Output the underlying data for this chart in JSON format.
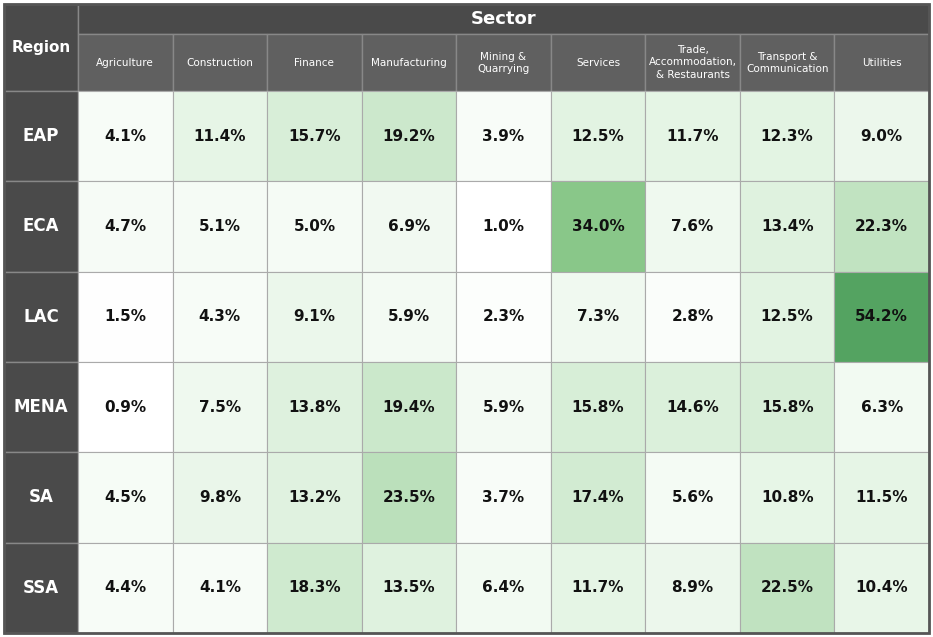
{
  "regions": [
    "EAP",
    "ECA",
    "LAC",
    "MENA",
    "SA",
    "SSA"
  ],
  "sectors": [
    "Agriculture",
    "Construction",
    "Finance",
    "Manufacturing",
    "Mining &\nQuarrying",
    "Services",
    "Trade,\nAccommodation,\n& Restaurants",
    "Transport &\nCommunication",
    "Utilities"
  ],
  "values": [
    [
      4.1,
      11.4,
      15.7,
      19.2,
      3.9,
      12.5,
      11.7,
      12.3,
      9.0
    ],
    [
      4.7,
      5.1,
      5.0,
      6.9,
      1.0,
      34.0,
      7.6,
      13.4,
      22.3
    ],
    [
      1.5,
      4.3,
      9.1,
      5.9,
      2.3,
      7.3,
      2.8,
      12.5,
      54.2
    ],
    [
      0.9,
      7.5,
      13.8,
      19.4,
      5.9,
      15.8,
      14.6,
      15.8,
      6.3
    ],
    [
      4.5,
      9.8,
      13.2,
      23.5,
      3.7,
      17.4,
      5.6,
      10.8,
      11.5
    ],
    [
      4.4,
      4.1,
      18.3,
      13.5,
      6.4,
      11.7,
      8.9,
      22.5,
      10.4
    ]
  ],
  "header_bg": "#4a4a4a",
  "header_text": "#ffffff",
  "sector_header_bg": "#606060",
  "sector_header_text": "#ffffff",
  "title": "Sector",
  "vmin": 0.9,
  "vmax": 54.2,
  "color_stops": [
    [
      0.0,
      [
        1.0,
        1.0,
        1.0
      ]
    ],
    [
      0.2,
      [
        0.9,
        0.96,
        0.9
      ]
    ],
    [
      0.4,
      [
        0.76,
        0.89,
        0.76
      ]
    ],
    [
      0.55,
      [
        0.6,
        0.82,
        0.6
      ]
    ],
    [
      0.7,
      [
        0.47,
        0.74,
        0.47
      ]
    ],
    [
      1.0,
      [
        0.33,
        0.64,
        0.38
      ]
    ]
  ]
}
